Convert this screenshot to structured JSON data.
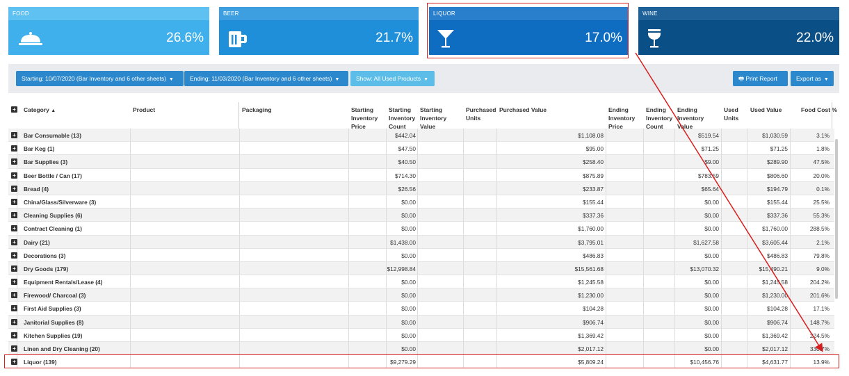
{
  "cards": [
    {
      "label": "FOOD",
      "value": "26.6%",
      "icon": "food-cloche-icon"
    },
    {
      "label": "BEER",
      "value": "21.7%",
      "icon": "beer-mug-icon"
    },
    {
      "label": "LIQUOR",
      "value": "17.0%",
      "icon": "martini-glass-icon"
    },
    {
      "label": "WINE",
      "value": "22.0%",
      "icon": "wine-glass-icon"
    }
  ],
  "toolbar": {
    "starting": "Starting: 10/07/2020 (Bar Inventory and 6 other sheets)",
    "ending": "Ending: 11/03/2020 (Bar Inventory and 6 other sheets)",
    "show": "Show: All Used Products",
    "print": "Print Report",
    "export": "Export as"
  },
  "columns": {
    "category": "Category",
    "product": "Product",
    "packaging": "Packaging",
    "sip": [
      "Starting",
      "Inventory",
      "Price"
    ],
    "sic": [
      "Starting",
      "Inventory",
      "Count"
    ],
    "siv": [
      "Starting",
      "Inventory",
      "Value"
    ],
    "pu": [
      "Purchased",
      "Units"
    ],
    "pv": "Purchased Value",
    "eip": [
      "Ending",
      "Inventory",
      "Price"
    ],
    "eic": [
      "Ending",
      "Inventory",
      "Count"
    ],
    "eiv": [
      "Ending",
      "Inventory",
      "Value"
    ],
    "uu": [
      "Used",
      "Units"
    ],
    "uv": "Used Value",
    "fc": "Food Cost %"
  },
  "rows": [
    {
      "cat": "Bar Consumable (13)",
      "siv": "$442.04",
      "pv": "$1,108.08",
      "eiv": "$519.54",
      "uv": "$1,030.59",
      "fc": "3.1%"
    },
    {
      "cat": "Bar Keg (1)",
      "siv": "$47.50",
      "pv": "$95.00",
      "eiv": "$71.25",
      "uv": "$71.25",
      "fc": "1.8%"
    },
    {
      "cat": "Bar Supplies (3)",
      "siv": "$40.50",
      "pv": "$258.40",
      "eiv": "$9.00",
      "uv": "$289.90",
      "fc": "47.5%"
    },
    {
      "cat": "Beer Bottle / Can (17)",
      "siv": "$714.30",
      "pv": "$875.89",
      "eiv": "$783.59",
      "uv": "$806.60",
      "fc": "20.0%"
    },
    {
      "cat": "Bread (4)",
      "siv": "$26.56",
      "pv": "$233.87",
      "eiv": "$65.64",
      "uv": "$194.79",
      "fc": "0.1%"
    },
    {
      "cat": "China/Glass/Silverware (3)",
      "siv": "$0.00",
      "pv": "$155.44",
      "eiv": "$0.00",
      "uv": "$155.44",
      "fc": "25.5%"
    },
    {
      "cat": "Cleaning Supplies (6)",
      "siv": "$0.00",
      "pv": "$337.36",
      "eiv": "$0.00",
      "uv": "$337.36",
      "fc": "55.3%"
    },
    {
      "cat": "Contract Cleaning (1)",
      "siv": "$0.00",
      "pv": "$1,760.00",
      "eiv": "$0.00",
      "uv": "$1,760.00",
      "fc": "288.5%"
    },
    {
      "cat": "Dairy (21)",
      "siv": "$1,438.00",
      "pv": "$3,795.01",
      "eiv": "$1,627.58",
      "uv": "$3,605.44",
      "fc": "2.1%"
    },
    {
      "cat": "Decorations (3)",
      "siv": "$0.00",
      "pv": "$486.83",
      "eiv": "$0.00",
      "uv": "$486.83",
      "fc": "79.8%"
    },
    {
      "cat": "Dry Goods (179)",
      "siv": "$12,998.84",
      "pv": "$15,561.68",
      "eiv": "$13,070.32",
      "uv": "$15,490.21",
      "fc": "9.0%"
    },
    {
      "cat": "Equipment Rentals/Lease (4)",
      "siv": "$0.00",
      "pv": "$1,245.58",
      "eiv": "$0.00",
      "uv": "$1,245.58",
      "fc": "204.2%"
    },
    {
      "cat": "Firewood/ Charcoal (3)",
      "siv": "$0.00",
      "pv": "$1,230.00",
      "eiv": "$0.00",
      "uv": "$1,230.00",
      "fc": "201.6%"
    },
    {
      "cat": "First Aid Supplies (3)",
      "siv": "$0.00",
      "pv": "$104.28",
      "eiv": "$0.00",
      "uv": "$104.28",
      "fc": "17.1%"
    },
    {
      "cat": "Janitorial Supplies (8)",
      "siv": "$0.00",
      "pv": "$906.74",
      "eiv": "$0.00",
      "uv": "$906.74",
      "fc": "148.7%"
    },
    {
      "cat": "Kitchen Supplies (19)",
      "siv": "$0.00",
      "pv": "$1,369.42",
      "eiv": "$0.00",
      "uv": "$1,369.42",
      "fc": "224.5%"
    },
    {
      "cat": "Linen and Dry Cleaning (20)",
      "siv": "$0.00",
      "pv": "$2,017.12",
      "eiv": "$0.00",
      "uv": "$2,017.12",
      "fc": "330.7%"
    },
    {
      "cat": "Liquor (139)",
      "siv": "$9,279.29",
      "pv": "$5,809.24",
      "eiv": "$10,456.76",
      "uv": "$4,631.77",
      "fc": "13.9%"
    }
  ]
}
